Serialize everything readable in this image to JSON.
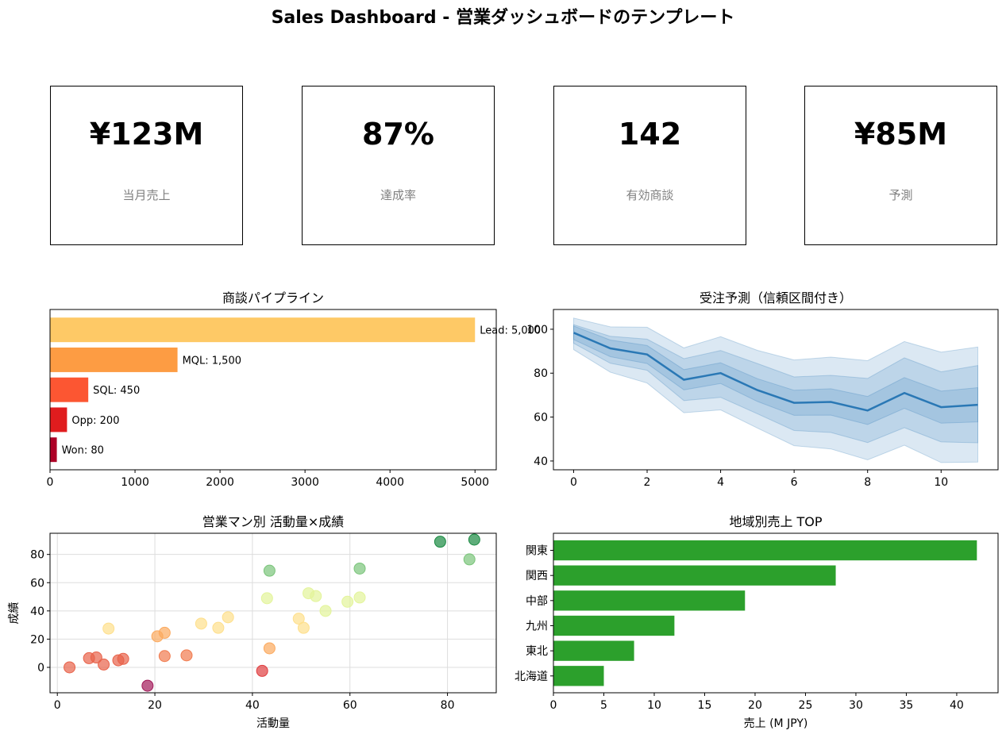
{
  "page": {
    "title": "Sales Dashboard - 営業ダッシュボードのテンプレート"
  },
  "kpis": [
    {
      "value": "¥123M",
      "label": "当月売上"
    },
    {
      "value": "87%",
      "label": "達成率"
    },
    {
      "value": "142",
      "label": "有効商談"
    },
    {
      "value": "¥85M",
      "label": "予測"
    }
  ],
  "chart_data": [
    {
      "type": "bar",
      "orientation": "horizontal",
      "title": "商談パイプライン",
      "categories": [
        "Lead",
        "MQL",
        "SQL",
        "Opp",
        "Won"
      ],
      "values": [
        5000,
        1500,
        450,
        200,
        80
      ],
      "data_labels": [
        "Lead: 5,000",
        "MQL: 1,500",
        "SQL: 450",
        "Opp: 200",
        "Won: 80"
      ],
      "colors": [
        "#fec966",
        "#fd9c43",
        "#fc5632",
        "#e01c1e",
        "#ad0026"
      ],
      "xlim": [
        0,
        5250
      ],
      "xticks": [
        0,
        1000,
        2000,
        3000,
        4000,
        5000
      ],
      "grid": false
    },
    {
      "type": "line",
      "title": "受注予測（信頼区間付き）",
      "x": [
        0,
        1,
        2,
        3,
        4,
        5,
        6,
        7,
        8,
        9,
        10,
        11
      ],
      "series": [
        {
          "values": [
            98.4,
            91.3,
            88.5,
            77.0,
            80.0,
            72.3,
            66.5,
            66.9,
            63.0,
            71.0,
            64.5,
            65.6
          ],
          "color": "#2a78b5"
        }
      ],
      "bands": [
        {
          "lower": [
            95.3,
            87.5,
            84.4,
            72.4,
            75.3,
            67.1,
            60.8,
            60.9,
            56.6,
            64.0,
            57.2,
            57.8
          ]
        },
        {
          "lower": [
            93.6,
            84.5,
            81.3,
            67.5,
            69.0,
            61.5,
            53.9,
            53.0,
            48.4,
            55.2,
            48.7,
            48.3
          ],
          "upper": [
            102.1,
            96.8,
            95.5,
            86.6,
            90.3,
            84.4,
            78.3,
            79.0,
            77.6,
            87.0,
            80.6,
            83.5
          ]
        },
        {
          "lower": [
            90.7,
            80.4,
            75.5,
            62.0,
            63.3,
            55.0,
            47.0,
            45.5,
            40.5,
            47.2,
            39.3,
            39.5
          ],
          "upper": [
            105.1,
            101.1,
            100.9,
            91.5,
            96.6,
            90.4,
            86.0,
            87.3,
            85.7,
            94.4,
            89.6,
            91.9
          ]
        }
      ],
      "xlim": [
        -0.55,
        11.55
      ],
      "ylim": [
        36,
        109
      ],
      "xticks": [
        0,
        2,
        4,
        6,
        8,
        10
      ],
      "yticks": [
        40,
        60,
        80,
        100
      ],
      "grid": false
    },
    {
      "type": "scatter",
      "title": "営業マン別 活動量×成績",
      "xlabel": "活動量",
      "ylabel": "成績",
      "points": [
        [
          2.5,
          0
        ],
        [
          6.5,
          6.5
        ],
        [
          8,
          7
        ],
        [
          9.5,
          2
        ],
        [
          12.5,
          5
        ],
        [
          13.5,
          6
        ],
        [
          18.5,
          -13
        ],
        [
          10.5,
          27.5
        ],
        [
          20.5,
          22
        ],
        [
          22,
          24.5
        ],
        [
          22,
          8
        ],
        [
          26.5,
          8.5
        ],
        [
          29.5,
          31
        ],
        [
          33,
          28
        ],
        [
          35,
          35.5
        ],
        [
          42,
          -2.5
        ],
        [
          43.5,
          13.5
        ],
        [
          43,
          49
        ],
        [
          43.5,
          68.5
        ],
        [
          49.5,
          34.5
        ],
        [
          50.5,
          28
        ],
        [
          51.5,
          52.5
        ],
        [
          53,
          50.5
        ],
        [
          55,
          40
        ],
        [
          59.5,
          46.5
        ],
        [
          62,
          49.5
        ],
        [
          62,
          70
        ],
        [
          78.5,
          89
        ],
        [
          84.5,
          76.5
        ],
        [
          85.5,
          90.5
        ]
      ],
      "colors": [
        "#e8624a",
        "#e8624a",
        "#e8624a",
        "#e8624a",
        "#e8624a",
        "#e8624a",
        "#a21a5a",
        "#fedf8c",
        "#fba95e",
        "#fba95e",
        "#f17b4e",
        "#f17b4e",
        "#fedf8c",
        "#fedf8c",
        "#fedf8c",
        "#e03e40",
        "#fba95e",
        "#e3f49a",
        "#7ac47a",
        "#fedf8c",
        "#fedf8c",
        "#e3f49a",
        "#e3f49a",
        "#e3f49a",
        "#e3f49a",
        "#e3f49a",
        "#7ac47a",
        "#1a8a42",
        "#7ac47a",
        "#1a8a42"
      ],
      "xlim": [
        -1.5,
        90
      ],
      "ylim": [
        -18,
        95
      ],
      "xticks": [
        0,
        20,
        40,
        60,
        80
      ],
      "yticks": [
        0,
        20,
        40,
        60,
        80
      ],
      "grid": true
    },
    {
      "type": "bar",
      "orientation": "horizontal",
      "title": "地域別売上 TOP",
      "xlabel": "売上 (M JPY)",
      "categories": [
        "関東",
        "関西",
        "中部",
        "九州",
        "東北",
        "北海道"
      ],
      "values": [
        42,
        28,
        19,
        12,
        8,
        5
      ],
      "color": "#2ca02c",
      "xlim": [
        0,
        44.1
      ],
      "xticks": [
        0,
        5,
        10,
        15,
        20,
        25,
        30,
        35,
        40
      ],
      "grid": false
    }
  ]
}
